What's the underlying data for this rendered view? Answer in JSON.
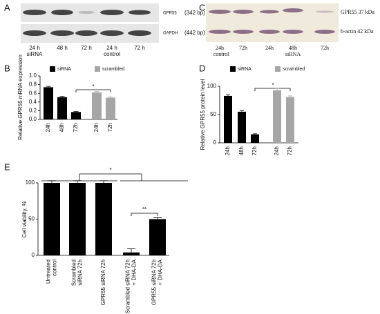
{
  "blots": [
    {
      "panel": "A",
      "rows": [
        {
          "name": "GPR55",
          "size": "(342 bp)"
        },
        {
          "name": "GAPDH",
          "size": "(442 bp)"
        }
      ],
      "lanes": [
        "24 h",
        "48 h",
        "72 h",
        "24 h",
        "72 h"
      ],
      "groups": [
        "siRNA",
        "control"
      ]
    },
    {
      "panel": "C",
      "rows": [
        {
          "name": "GPR55 37 kDa"
        },
        {
          "name": "b-actin 42 kDa"
        }
      ],
      "lanes": [
        "24h",
        "72h",
        "24h",
        "48h",
        "72h"
      ],
      "groups": [
        "control",
        "siRNA"
      ]
    }
  ],
  "chart_data": [
    {
      "type": "bar",
      "panel": "B",
      "y_label": "Relative GPR55 mRNA expression",
      "categories": [
        "24h",
        "48h",
        "72h",
        "24h",
        "72h"
      ],
      "series": [
        {
          "name": "siRNA",
          "color": "#000000",
          "values": [
            0.74,
            0.51,
            0.17,
            null,
            null
          ],
          "errors": [
            0.02,
            0.02,
            0.01,
            null,
            null
          ]
        },
        {
          "name": "scrambled",
          "color": "#a6a6a6",
          "values": [
            null,
            null,
            null,
            0.62,
            0.5
          ],
          "errors": [
            null,
            null,
            null,
            0.02,
            0.015
          ]
        }
      ],
      "ylim": [
        0,
        1
      ],
      "yticks": [
        {
          "value": 0,
          "label": "0.0"
        },
        0.2,
        0.4,
        0.6,
        0.8,
        {
          "value": 1,
          "label": "1.0"
        }
      ],
      "annotations": [
        "*"
      ]
    },
    {
      "type": "bar",
      "panel": "D",
      "y_label": "Relative GPR55 protein level",
      "categories": [
        "24h",
        "48h",
        "72h",
        "24h",
        "72h"
      ],
      "series": [
        {
          "name": "siRNA",
          "color": "#000000",
          "values": [
            83,
            55,
            15,
            null,
            null
          ],
          "errors": [
            2,
            2,
            1,
            null,
            null
          ]
        },
        {
          "name": "scrambled",
          "color": "#a6a6a6",
          "values": [
            null,
            null,
            null,
            93,
            81
          ],
          "errors": [
            null,
            null,
            null,
            3,
            2
          ]
        }
      ],
      "ylim": [
        0,
        100
      ],
      "yticks": [
        0,
        50,
        100
      ],
      "annotations": [
        "*"
      ]
    },
    {
      "type": "bar",
      "panel": "E",
      "y_label": "Cell viability, %",
      "categories": [
        [
          "Untreated",
          "control"
        ],
        [
          "Scrambled",
          "siRNA 72h"
        ],
        [
          "GPR55 siRNA 72h"
        ],
        [
          "Scrambled siRNA 72h",
          "+ DHA-DA"
        ],
        [
          "GPR55 siRNA 72h",
          "+ DHA-DA"
        ]
      ],
      "series": [
        {
          "color": "#000000",
          "values": [
            100,
            100,
            100,
            4,
            50
          ],
          "errors": [
            3,
            3,
            3,
            5,
            2
          ]
        }
      ],
      "ylim": [
        0,
        100
      ],
      "yticks": [
        0,
        50,
        100
      ],
      "annotations": [
        "*",
        "**"
      ]
    }
  ]
}
